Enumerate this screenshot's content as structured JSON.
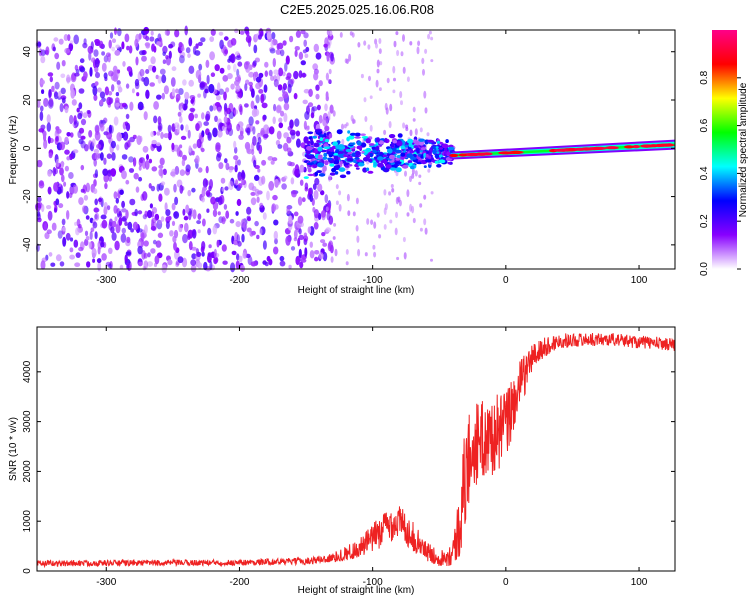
{
  "title": "C2E5.2025.025.16.06.R08",
  "chart_data": [
    {
      "type": "heatmap",
      "title": "",
      "xlabel": "Height of straight line (km)",
      "ylabel": "Frequency (Hz)",
      "xlim": [
        -352,
        127
      ],
      "ylim": [
        -50,
        49
      ],
      "x_ticks": [
        -300,
        -200,
        -100,
        0,
        100
      ],
      "y_ticks": [
        -40,
        -20,
        0,
        20,
        40
      ],
      "colorbar": {
        "label": "Normalized spectral amplitude",
        "range": [
          0,
          1
        ],
        "ticks": [
          "0.0",
          "0.2",
          "0.4",
          "0.6",
          "0.8"
        ],
        "colors": [
          "#ffffff",
          "#8800ff",
          "#0000ff",
          "#00ffff",
          "#00ff00",
          "#ffff00",
          "#ff0000",
          "#ff0088"
        ]
      },
      "regions": [
        {
          "name": "noise",
          "x_range": [
            -352,
            -130
          ],
          "freq_range": [
            -50,
            49
          ],
          "amplitude": 0.15
        },
        {
          "name": "onset",
          "x_range": [
            -150,
            -40
          ],
          "freq_center": 0,
          "freq_halfwidth": 8,
          "amplitude": 0.4
        },
        {
          "name": "carrier",
          "x_range": [
            -40,
            127
          ],
          "freq_start": -3,
          "freq_end": 1.5,
          "amplitude": 0.9
        }
      ]
    },
    {
      "type": "line",
      "title": "",
      "xlabel": "Height of straight line (km)",
      "ylabel": "SNR (10 * v/v)",
      "xlim": [
        -352,
        127
      ],
      "ylim": [
        0,
        4900
      ],
      "x_ticks": [
        -300,
        -200,
        -100,
        0,
        100
      ],
      "y_ticks": [
        0,
        1000,
        2000,
        3000,
        4000
      ],
      "series": [
        {
          "name": "SNR",
          "color": "#ee2222",
          "x": [
            -352,
            -300,
            -200,
            -150,
            -130,
            -110,
            -100,
            -90,
            -80,
            -70,
            -60,
            -50,
            -40,
            -35,
            -30,
            -25,
            -20,
            -10,
            0,
            10,
            20,
            30,
            40,
            60,
            80,
            100,
            127
          ],
          "values": [
            150,
            160,
            170,
            200,
            260,
            450,
            650,
            900,
            1000,
            700,
            400,
            250,
            350,
            900,
            2000,
            2500,
            2600,
            2700,
            2900,
            3700,
            4300,
            4500,
            4620,
            4650,
            4650,
            4600,
            4550
          ],
          "noise": [
            60,
            60,
            60,
            70,
            100,
            200,
            300,
            350,
            350,
            300,
            200,
            150,
            250,
            700,
            1100,
            900,
            800,
            800,
            750,
            500,
            300,
            200,
            150,
            130,
            130,
            130,
            130
          ]
        }
      ]
    }
  ]
}
